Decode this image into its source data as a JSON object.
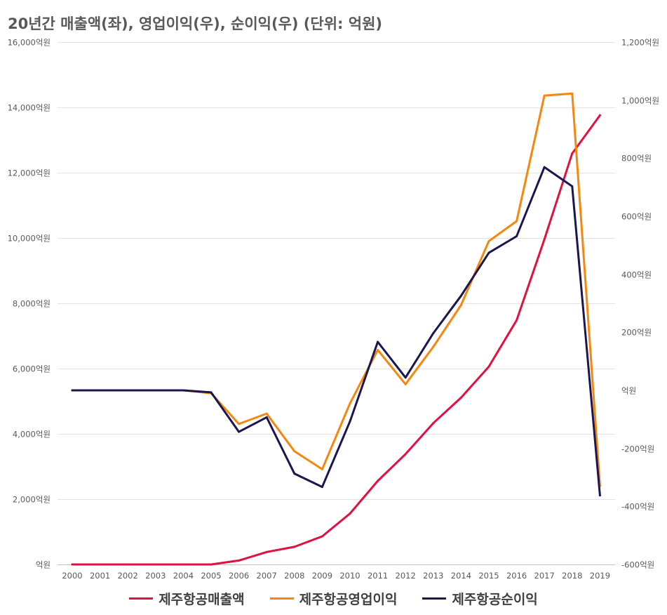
{
  "chart_data": {
    "type": "line",
    "title": "20년간 매출액(좌), 영업이익(우), 순이익(우) (단위: 억원)",
    "categories": [
      "2000",
      "2001",
      "2002",
      "2003",
      "2004",
      "2005",
      "2006",
      "2007",
      "2008",
      "2009",
      "2010",
      "2011",
      "2012",
      "2013",
      "2014",
      "2015",
      "2016",
      "2017",
      "2018",
      "2019"
    ],
    "y_left": {
      "lim": [
        0,
        16000
      ],
      "ticks": [
        0,
        2000,
        4000,
        6000,
        8000,
        10000,
        12000,
        14000,
        16000
      ],
      "tick_labels": [
        "억원",
        "2,000억원",
        "4,000억원",
        "6,000억원",
        "8,000억원",
        "10,000억원",
        "12,000억원",
        "14,000억원",
        "16,000억원"
      ]
    },
    "y_right": {
      "lim": [
        -600,
        1200
      ],
      "ticks": [
        -600,
        -400,
        -200,
        0,
        200,
        400,
        600,
        800,
        1000,
        1200
      ],
      "tick_labels": [
        "-600억원",
        "-400억원",
        "-200억원",
        "억원",
        "200억원",
        "400억원",
        "600억원",
        "800억원",
        "1,000억원",
        "1,200억원"
      ]
    },
    "grid": true,
    "legend_position": "bottom",
    "series": [
      {
        "name": "제주항공매출액",
        "axis": "left",
        "color": "#e0103f",
        "values": [
          0,
          0,
          0,
          0,
          0,
          0,
          120,
          380,
          540,
          860,
          1560,
          2560,
          3380,
          4330,
          5110,
          6060,
          7480,
          9960,
          12590,
          13760
        ]
      },
      {
        "name": "제주항공영업이익",
        "axis": "left_offset",
        "axis_note": "right",
        "color": "#f5870f",
        "values": [
          0,
          0,
          0,
          0,
          0,
          -10,
          -116,
          -80,
          -210,
          -272,
          -45,
          139,
          21,
          150,
          294,
          514,
          583,
          1016,
          1023,
          -329
        ]
      },
      {
        "name": "제주항공순이익",
        "axis": "right",
        "color": "#1c1650",
        "values": [
          0,
          0,
          0,
          0,
          0,
          -7,
          -143,
          -93,
          -287,
          -333,
          -107,
          167,
          44,
          197,
          326,
          474,
          531,
          769,
          703,
          -362
        ]
      }
    ]
  }
}
